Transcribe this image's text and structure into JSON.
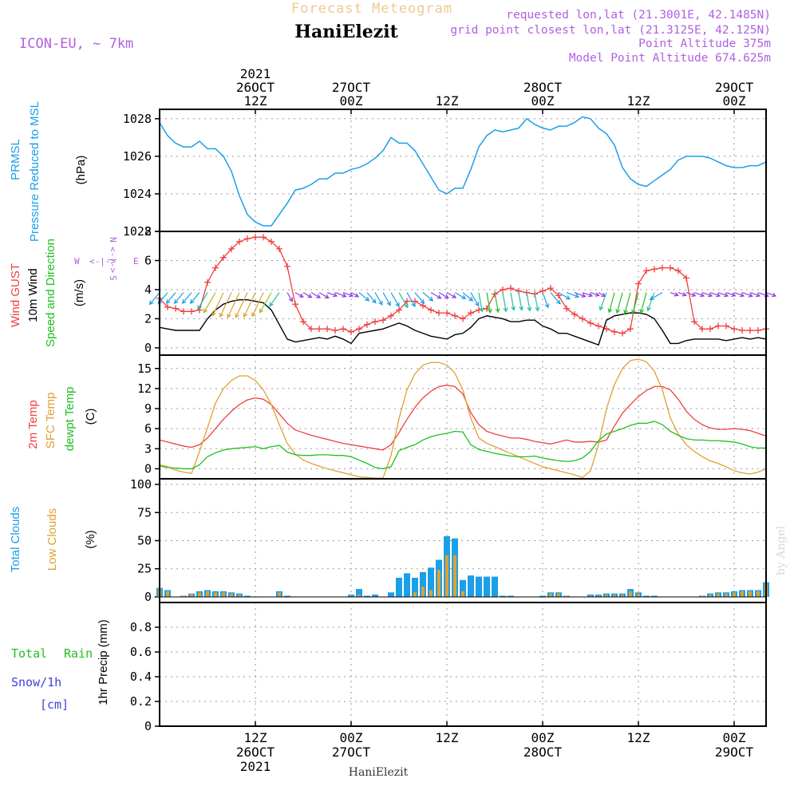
{
  "header": {
    "caption": "Forecast Meteogram",
    "site": "HaniElezit",
    "model": "ICON-EU, ~ 7km",
    "requested": "requested lon,lat (21.3001E, 42.1485N)",
    "gridpoint": "grid point closest lon,lat (21.3125E, 42.125N)",
    "alt": "Point Altitude 375m",
    "model_alt": "Model Point Altitude 674.625m",
    "footer": "HaniElezit",
    "credit": "by Angel"
  },
  "time_axis": {
    "top_labels": [
      {
        "h": 12,
        "lines": [
          "2021",
          "26OCT",
          "12Z"
        ]
      },
      {
        "h": 24,
        "lines": [
          "27OCT",
          "00Z"
        ]
      },
      {
        "h": 36,
        "lines": [
          "12Z"
        ]
      },
      {
        "h": 48,
        "lines": [
          "28OCT",
          "00Z"
        ]
      },
      {
        "h": 60,
        "lines": [
          "12Z"
        ]
      },
      {
        "h": 72,
        "lines": [
          "29OCT",
          "00Z"
        ]
      }
    ],
    "bottom_labels": [
      {
        "h": 12,
        "lines": [
          "12Z",
          "26OCT",
          "2021"
        ]
      },
      {
        "h": 24,
        "lines": [
          "00Z",
          "27OCT"
        ]
      },
      {
        "h": 36,
        "lines": [
          "12Z"
        ]
      },
      {
        "h": 48,
        "lines": [
          "00Z",
          "28OCT"
        ]
      },
      {
        "h": 60,
        "lines": [
          "12Z"
        ]
      },
      {
        "h": 72,
        "lines": [
          "00Z",
          "29OCT"
        ]
      }
    ]
  },
  "panel_labels": {
    "pressure": {
      "col1": "PRMSL",
      "col2": "Pressure Reduced to MSL",
      "unit": "(hPa)"
    },
    "wind": {
      "col1": "Wind GUST",
      "col2": "10m Wind",
      "col3": "Speed and Direction",
      "unit": "(m/s)",
      "compass_w": "W",
      "compass_e": "E",
      "compass_x": "<-|->",
      "compass_n": "N",
      "compass_s": "S",
      "compass_v": "<-|->"
    },
    "temp": {
      "col1": "2m Temp",
      "col2": "SFC Temp",
      "col3": "dewpt Temp",
      "unit": "(C)"
    },
    "clouds": {
      "col1": "Total Clouds",
      "col2": "Low Clouds",
      "unit": "(%)"
    },
    "precip": {
      "total": "Total",
      "rain": "Rain",
      "snow": "Snow/1h",
      "cm": "[cm]",
      "unit": "1hr Precip (mm)"
    }
  },
  "colors": {
    "pressure": "#1aa0e8",
    "gust": "#f04040",
    "wind": "#000000",
    "t2m": "#f04040",
    "tsfc": "#e0a030",
    "dewpt": "#20c020",
    "total_clouds": "#1aa0e8",
    "low_clouds": "#e0a030",
    "purple": "#b060e0",
    "rain": "#20c020",
    "snow": "#4040e0",
    "header": "#f0c890"
  },
  "chart_data": [
    {
      "type": "line",
      "id": "pressure",
      "ylim": [
        1022,
        1028.5
      ],
      "yticks": [
        "1022",
        "1024",
        "1026",
        "1028"
      ],
      "x": [
        0,
        1,
        2,
        3,
        4,
        5,
        6,
        7,
        8,
        9,
        10,
        11,
        12,
        13,
        14,
        15,
        16,
        17,
        18,
        19,
        20,
        21,
        22,
        23,
        24,
        25,
        26,
        27,
        28,
        29,
        30,
        31,
        32,
        33,
        34,
        35,
        36,
        37,
        38,
        39,
        40,
        41,
        42,
        43,
        44,
        45,
        46,
        47,
        48,
        49,
        50,
        51,
        52,
        53,
        54,
        55,
        56,
        57,
        58,
        59,
        60,
        61,
        62,
        63,
        64,
        65,
        66,
        67,
        68,
        69,
        70,
        71,
        72,
        73,
        74,
        75,
        76
      ],
      "series": [
        {
          "values": [
            1027.8,
            1027.1,
            1026.7,
            1026.5,
            1026.5,
            1026.8,
            1026.4,
            1026.4,
            1026.0,
            1025.2,
            1023.9,
            1022.9,
            1022.5,
            1022.3,
            1022.3,
            1022.9,
            1023.5,
            1024.2,
            1024.3,
            1024.5,
            1024.8,
            1024.8,
            1025.1,
            1025.1,
            1025.3,
            1025.4,
            1025.6,
            1025.9,
            1026.3,
            1027.0,
            1026.7,
            1026.7,
            1026.3,
            1025.6,
            1024.9,
            1024.2,
            1024.0,
            1024.3,
            1024.3,
            1025.3,
            1026.5,
            1027.1,
            1027.4,
            1027.3,
            1027.4,
            1027.5,
            1028.0,
            1027.7,
            1027.5,
            1027.4,
            1027.6,
            1027.6,
            1027.8,
            1028.1,
            1028.0,
            1027.5,
            1027.2,
            1026.6,
            1025.4,
            1024.8,
            1024.5,
            1024.4,
            1024.7,
            1025.0,
            1025.3,
            1025.8,
            1026.0,
            1026.0,
            1026.0,
            1025.9,
            1025.7,
            1025.5,
            1025.4,
            1025.4,
            1025.5,
            1025.5,
            1025.7
          ]
        }
      ]
    },
    {
      "type": "line",
      "id": "wind",
      "ylim": [
        -0.5,
        8
      ],
      "yticks": [
        "0",
        "2",
        "4",
        "6",
        "8"
      ],
      "x": [
        0,
        1,
        2,
        3,
        4,
        5,
        6,
        7,
        8,
        9,
        10,
        11,
        12,
        13,
        14,
        15,
        16,
        17,
        18,
        19,
        20,
        21,
        22,
        23,
        24,
        25,
        26,
        27,
        28,
        29,
        30,
        31,
        32,
        33,
        34,
        35,
        36,
        37,
        38,
        39,
        40,
        41,
        42,
        43,
        44,
        45,
        46,
        47,
        48,
        49,
        50,
        51,
        52,
        53,
        54,
        55,
        56,
        57,
        58,
        59,
        60,
        61,
        62,
        63,
        64,
        65,
        66,
        67,
        68,
        69,
        70,
        71,
        72,
        73,
        74,
        75,
        76
      ],
      "series": [
        {
          "name": "Wind GUST",
          "values": [
            3.4,
            2.8,
            2.7,
            2.5,
            2.5,
            2.6,
            4.5,
            5.5,
            6.2,
            6.8,
            7.3,
            7.5,
            7.6,
            7.6,
            7.3,
            6.8,
            5.6,
            3.0,
            1.8,
            1.3,
            1.3,
            1.3,
            1.2,
            1.3,
            1.1,
            1.3,
            1.6,
            1.8,
            1.9,
            2.2,
            2.6,
            3.2,
            3.2,
            2.9,
            2.6,
            2.4,
            2.4,
            2.2,
            2.0,
            2.4,
            2.6,
            2.7,
            3.7,
            4.0,
            4.1,
            3.9,
            3.8,
            3.7,
            3.9,
            4.1,
            3.6,
            2.7,
            2.3,
            2.0,
            1.7,
            1.5,
            1.3,
            1.1,
            1.0,
            1.3,
            4.4,
            5.3,
            5.4,
            5.5,
            5.5,
            5.3,
            4.8,
            1.8,
            1.3,
            1.3,
            1.5,
            1.5,
            1.3,
            1.2,
            1.2,
            1.2,
            1.3
          ]
        },
        {
          "name": "10m Wind",
          "values": [
            1.4,
            1.3,
            1.2,
            1.2,
            1.2,
            1.2,
            2.0,
            2.6,
            3.0,
            3.2,
            3.3,
            3.3,
            3.2,
            3.1,
            2.6,
            1.6,
            0.6,
            0.4,
            0.5,
            0.6,
            0.7,
            0.6,
            0.8,
            0.6,
            0.3,
            1.0,
            1.1,
            1.2,
            1.3,
            1.5,
            1.7,
            1.5,
            1.2,
            1.0,
            0.8,
            0.7,
            0.6,
            0.9,
            1.0,
            1.4,
            2.0,
            2.2,
            2.1,
            2.0,
            1.8,
            1.8,
            1.9,
            1.9,
            1.5,
            1.3,
            1.0,
            1.0,
            0.8,
            0.6,
            0.4,
            0.2,
            1.9,
            2.2,
            2.3,
            2.4,
            2.4,
            2.3,
            2.0,
            1.2,
            0.3,
            0.3,
            0.5,
            0.6,
            0.6,
            0.6,
            0.6,
            0.5,
            0.6,
            0.7,
            0.6,
            0.7,
            0.6
          ]
        }
      ],
      "arrows_dir_deg": [
        40,
        40,
        40,
        40,
        40,
        40,
        30,
        30,
        25,
        25,
        25,
        25,
        25,
        25,
        30,
        35,
        330,
        300,
        300,
        300,
        300,
        290,
        290,
        290,
        300,
        310,
        320,
        330,
        330,
        330,
        330,
        330,
        320,
        310,
        300,
        300,
        300,
        300,
        310,
        330,
        350,
        350,
        350,
        350,
        350,
        350,
        350,
        350,
        340,
        320,
        300,
        290,
        290,
        290,
        290,
        300,
        20,
        15,
        15,
        15,
        15,
        15,
        20,
        60,
        290,
        290,
        290,
        290,
        290,
        290,
        290,
        290,
        290,
        290,
        290,
        290,
        290
      ]
    },
    {
      "type": "line",
      "id": "temp",
      "ylim": [
        -1.5,
        17
      ],
      "yticks": [
        "0",
        "3",
        "6",
        "9",
        "12",
        "15"
      ],
      "x": [
        0,
        1,
        2,
        3,
        4,
        5,
        6,
        7,
        8,
        9,
        10,
        11,
        12,
        13,
        14,
        15,
        16,
        17,
        18,
        19,
        20,
        21,
        22,
        23,
        24,
        25,
        26,
        27,
        28,
        29,
        30,
        31,
        32,
        33,
        34,
        35,
        36,
        37,
        38,
        39,
        40,
        41,
        42,
        43,
        44,
        45,
        46,
        47,
        48,
        49,
        50,
        51,
        52,
        53,
        54,
        55,
        56,
        57,
        58,
        59,
        60,
        61,
        62,
        63,
        64,
        65,
        66,
        67,
        68,
        69,
        70,
        71,
        72,
        73,
        74,
        75,
        76
      ],
      "series": [
        {
          "name": "2m Temp",
          "values": [
            4.3,
            4.0,
            3.7,
            3.4,
            3.2,
            3.6,
            4.6,
            6.0,
            7.4,
            8.6,
            9.6,
            10.3,
            10.6,
            10.4,
            9.6,
            8.2,
            6.8,
            5.8,
            5.4,
            5.0,
            4.7,
            4.4,
            4.1,
            3.8,
            3.6,
            3.4,
            3.2,
            3.0,
            2.8,
            3.6,
            5.4,
            7.4,
            9.2,
            10.6,
            11.6,
            12.3,
            12.5,
            12.3,
            11.2,
            8.4,
            6.6,
            5.6,
            5.2,
            4.9,
            4.6,
            4.6,
            4.4,
            4.1,
            3.9,
            3.7,
            4.0,
            4.3,
            4.0,
            4.0,
            4.1,
            4.0,
            4.3,
            6.4,
            8.3,
            9.6,
            10.8,
            11.7,
            12.3,
            12.3,
            11.8,
            10.4,
            8.6,
            7.4,
            6.6,
            6.1,
            5.9,
            5.9,
            6.0,
            5.9,
            5.7,
            5.3,
            4.9
          ]
        },
        {
          "name": "SFC Temp",
          "values": [
            0.6,
            0.3,
            -0.2,
            -0.5,
            -0.7,
            2.6,
            6.1,
            9.8,
            12.0,
            13.2,
            13.9,
            13.9,
            13.2,
            11.8,
            9.6,
            6.6,
            3.8,
            2.2,
            1.3,
            0.8,
            0.4,
            0.0,
            -0.3,
            -0.6,
            -0.9,
            -1.2,
            -1.3,
            -1.4,
            -1.4,
            2.0,
            7.5,
            11.8,
            14.2,
            15.5,
            15.9,
            15.9,
            15.5,
            14.3,
            11.8,
            7.6,
            4.6,
            3.8,
            3.3,
            2.8,
            2.3,
            1.8,
            1.3,
            0.8,
            0.3,
            0.0,
            -0.3,
            -0.6,
            -0.9,
            -1.3,
            -0.3,
            3.6,
            9.0,
            12.6,
            15.0,
            16.2,
            16.4,
            16.0,
            14.6,
            11.8,
            7.6,
            5.2,
            3.6,
            2.6,
            1.8,
            1.2,
            0.8,
            0.3,
            -0.3,
            -0.6,
            -0.8,
            -0.5,
            0.0
          ]
        },
        {
          "name": "dewpt Temp",
          "values": [
            0.4,
            0.2,
            0.1,
            0.0,
            0.0,
            0.6,
            1.8,
            2.4,
            2.8,
            3.0,
            3.1,
            3.2,
            3.3,
            3.0,
            3.3,
            3.5,
            2.5,
            2.1,
            2.0,
            2.0,
            2.1,
            2.1,
            2.0,
            2.0,
            1.8,
            1.3,
            0.8,
            0.2,
            0.0,
            0.3,
            2.7,
            3.2,
            3.6,
            4.3,
            4.8,
            5.1,
            5.3,
            5.6,
            5.5,
            3.6,
            2.9,
            2.6,
            2.3,
            2.1,
            1.9,
            1.8,
            1.8,
            1.9,
            1.6,
            1.4,
            1.2,
            1.1,
            1.2,
            1.6,
            2.6,
            4.2,
            5.2,
            5.6,
            6.0,
            6.5,
            6.8,
            6.8,
            7.1,
            6.6,
            5.6,
            5.0,
            4.5,
            4.3,
            4.3,
            4.2,
            4.2,
            4.1,
            4.0,
            3.7,
            3.3,
            3.1,
            3.1
          ]
        }
      ]
    },
    {
      "type": "bar",
      "id": "clouds",
      "ylim": [
        -5,
        105
      ],
      "yticks": [
        "0",
        "25",
        "50",
        "75",
        "100"
      ],
      "x": [
        0,
        1,
        2,
        3,
        4,
        5,
        6,
        7,
        8,
        9,
        10,
        11,
        12,
        13,
        14,
        15,
        16,
        17,
        18,
        19,
        20,
        21,
        22,
        23,
        24,
        25,
        26,
        27,
        28,
        29,
        30,
        31,
        32,
        33,
        34,
        35,
        36,
        37,
        38,
        39,
        40,
        41,
        42,
        43,
        44,
        45,
        46,
        47,
        48,
        49,
        50,
        51,
        52,
        53,
        54,
        55,
        56,
        57,
        58,
        59,
        60,
        61,
        62,
        63,
        64,
        65,
        66,
        67,
        68,
        69,
        70,
        71,
        72,
        73,
        74,
        75,
        76
      ],
      "series": [
        {
          "name": "Total Clouds",
          "values": [
            8,
            6,
            0,
            1,
            3,
            5,
            6,
            5,
            5,
            4,
            3,
            1,
            0,
            0,
            0,
            5,
            1,
            0,
            0,
            0,
            0,
            0,
            0,
            0,
            2,
            7,
            1,
            2,
            0,
            4,
            17,
            21,
            17,
            22,
            26,
            33,
            54,
            52,
            15,
            19,
            18,
            18,
            18,
            1,
            1,
            0,
            0,
            0,
            1,
            4,
            4,
            1,
            0,
            0,
            2,
            2,
            3,
            3,
            3,
            7,
            4,
            1,
            1,
            0,
            0,
            0,
            0,
            0,
            1,
            3,
            4,
            4,
            5,
            6,
            6,
            6,
            13
          ]
        },
        {
          "name": "Low Clouds",
          "values": [
            8,
            5,
            0,
            1,
            3,
            4,
            5,
            4,
            4,
            3,
            2,
            0,
            0,
            0,
            0,
            4,
            0,
            0,
            0,
            0,
            0,
            0,
            0,
            0,
            1,
            2,
            0,
            0,
            0,
            0,
            0,
            0,
            4,
            9,
            6,
            24,
            37,
            37,
            5,
            0,
            0,
            0,
            0,
            0,
            0,
            0,
            0,
            0,
            0,
            3,
            3,
            1,
            0,
            0,
            1,
            1,
            2,
            2,
            2,
            5,
            3,
            0,
            0,
            0,
            0,
            0,
            0,
            0,
            1,
            2,
            3,
            3,
            4,
            5,
            5,
            5,
            12
          ]
        }
      ]
    },
    {
      "type": "bar",
      "id": "precip",
      "ylim": [
        0,
        1.0
      ],
      "yticks": [
        "0",
        "0.2",
        "0.4",
        "0.6",
        "0.8"
      ],
      "x": [
        0,
        76
      ],
      "series": [
        {
          "name": "Total Rain",
          "values": [
            0,
            0
          ]
        }
      ]
    }
  ]
}
